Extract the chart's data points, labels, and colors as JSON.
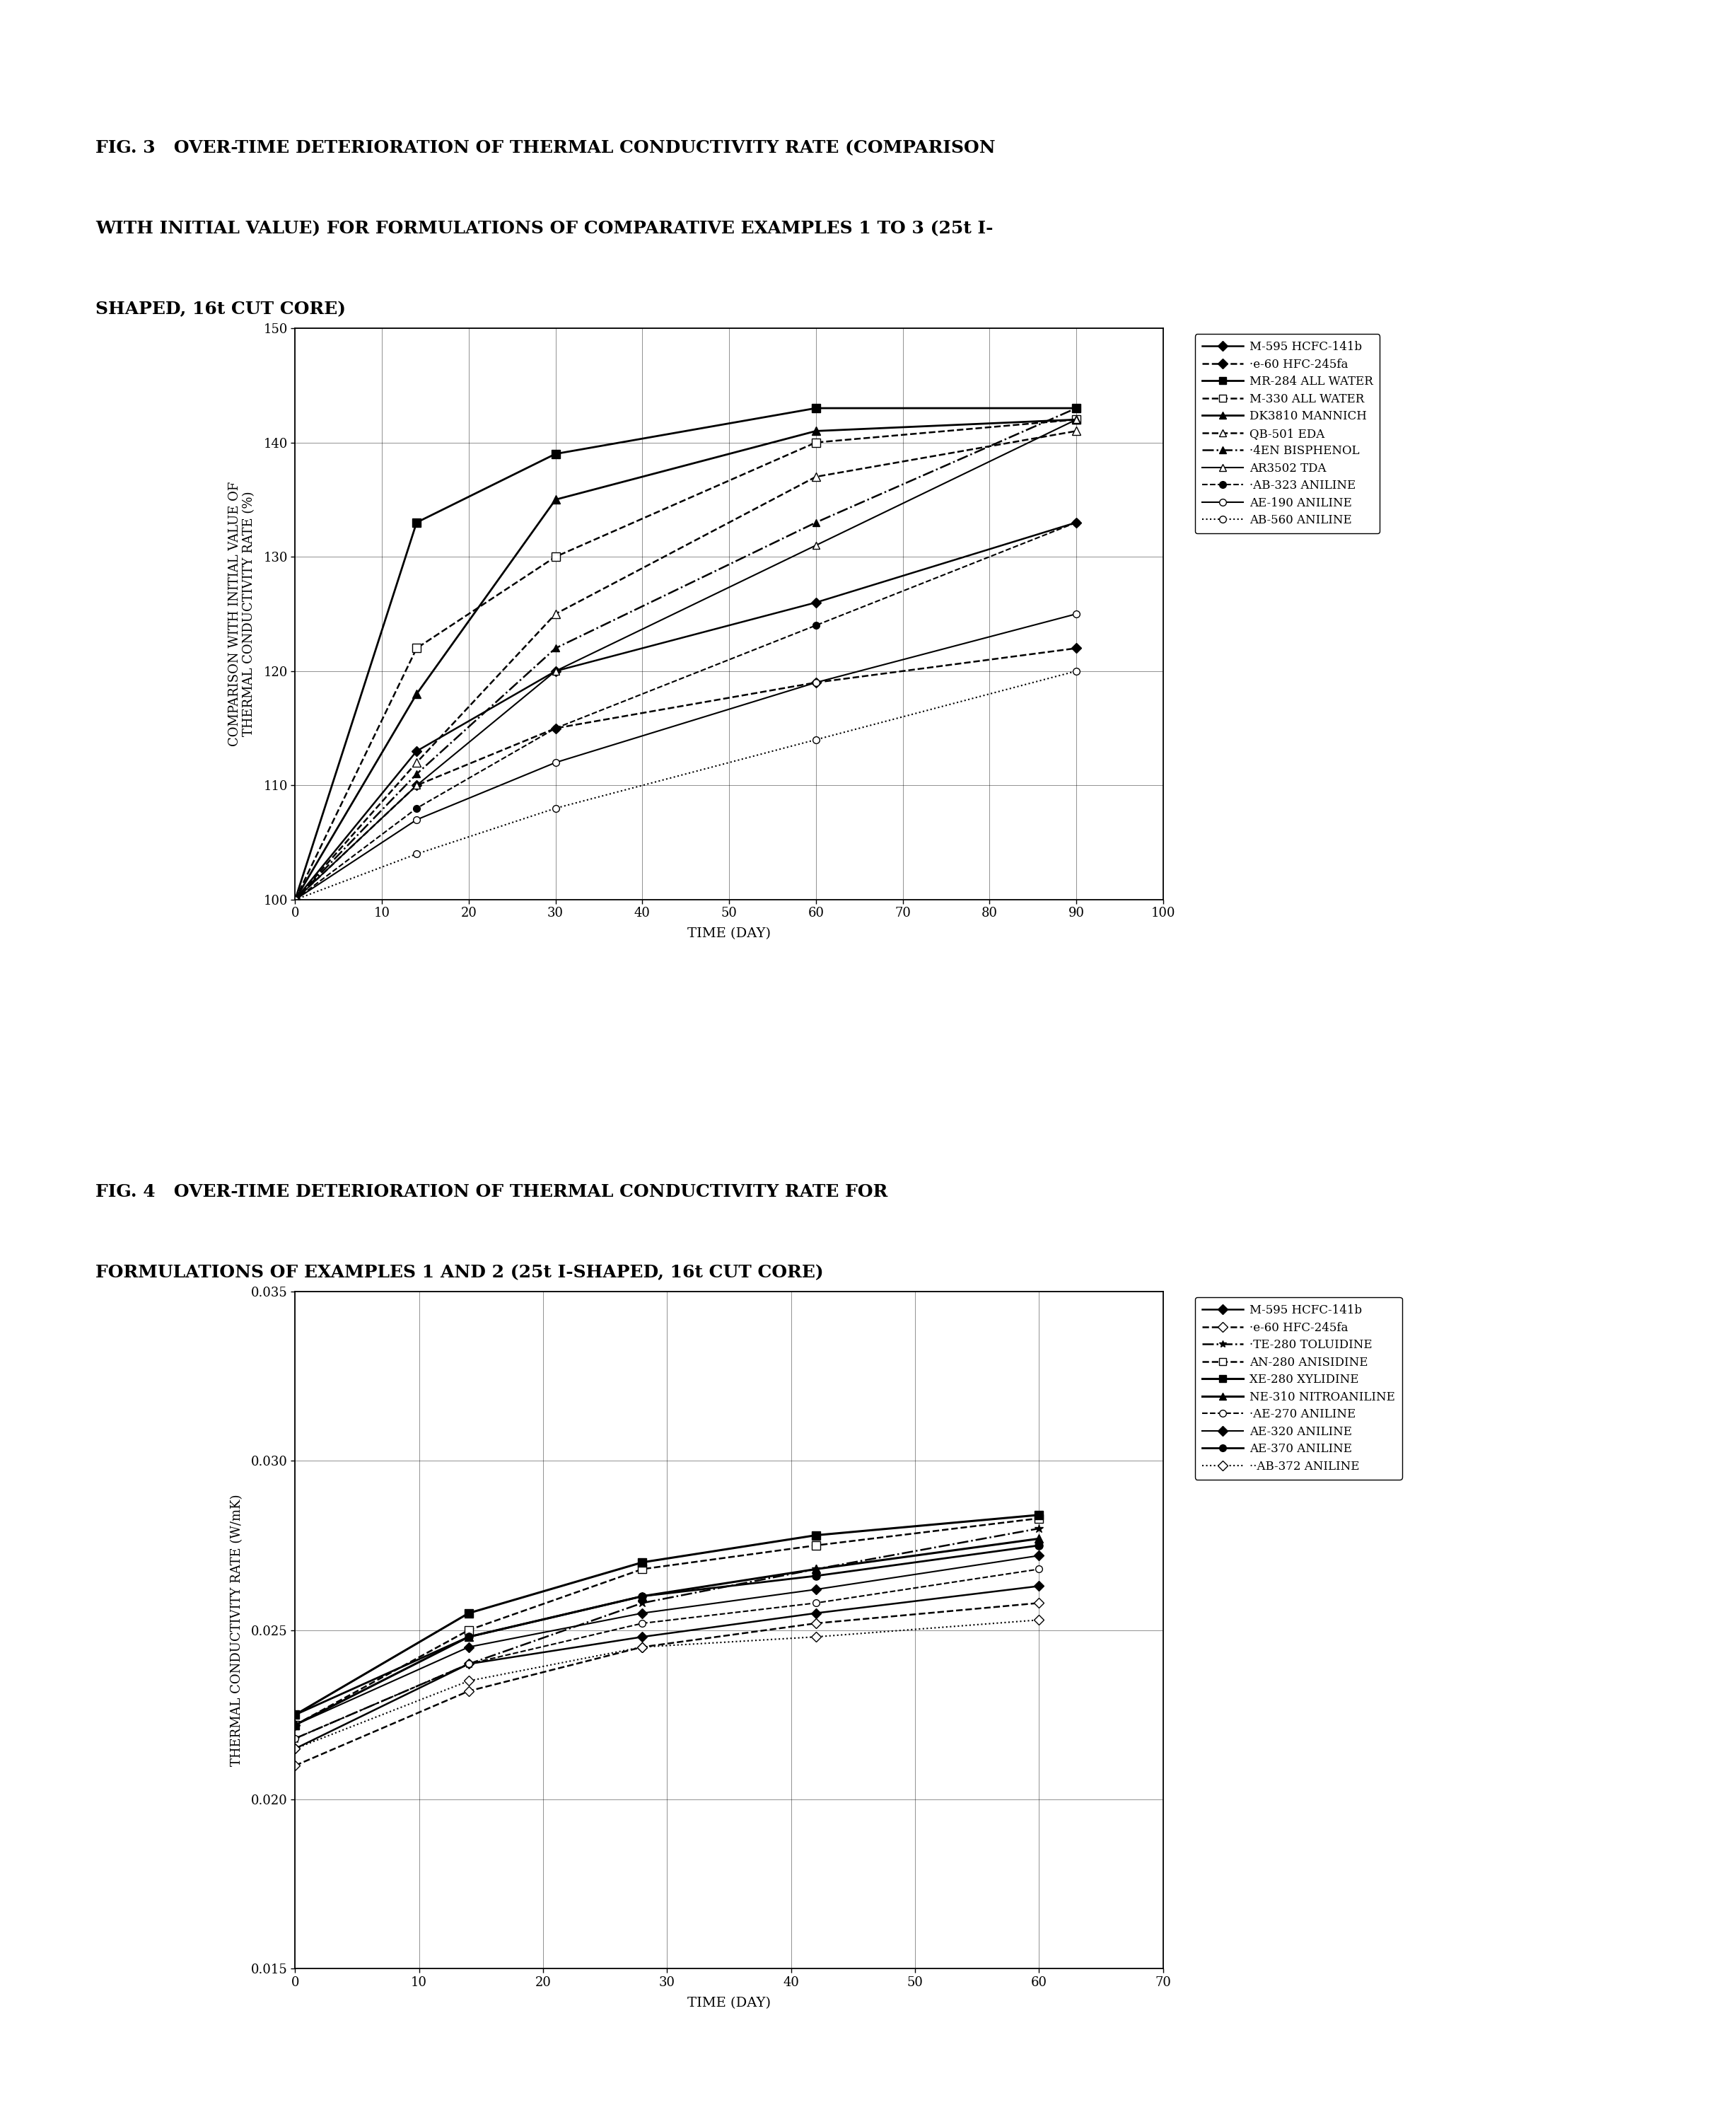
{
  "fig3_title_lines": [
    "FIG. 3   OVER-TIME DETERIORATION OF THERMAL CONDUCTIVITY RATE (COMPARISON",
    "WITH INITIAL VALUE) FOR FORMULATIONS OF COMPARATIVE EXAMPLES 1 TO 3 (25t I-",
    "SHAPED, 16t CUT CORE)"
  ],
  "fig4_title_lines": [
    "FIG. 4   OVER-TIME DETERIORATION OF THERMAL CONDUCTIVITY RATE FOR",
    "FORMULATIONS OF EXAMPLES 1 AND 2 (25t I-SHAPED, 16t CUT CORE)"
  ],
  "fig3_xlabel": "TIME (DAY)",
  "fig3_ylabel_line1": "COMPARISON WITH INITIAL VALUE OF",
  "fig3_ylabel_line2": "THERMAL CONDUCTIVITY RATE (%)",
  "fig3_xlim": [
    0,
    100
  ],
  "fig3_ylim": [
    100,
    150
  ],
  "fig3_xticks": [
    0,
    10,
    20,
    30,
    40,
    50,
    60,
    70,
    80,
    90,
    100
  ],
  "fig3_yticks": [
    100,
    110,
    120,
    130,
    140,
    150
  ],
  "fig4_xlabel": "TIME (DAY)",
  "fig4_ylabel": "THERMAL CONDUCTIVITY RATE (W/mK)",
  "fig4_xlim": [
    0,
    70
  ],
  "fig4_ylim": [
    0.015,
    0.035
  ],
  "fig4_xticks": [
    0,
    10,
    20,
    30,
    40,
    50,
    60,
    70
  ],
  "fig4_yticks": [
    0.015,
    0.02,
    0.025,
    0.03,
    0.035
  ],
  "bg_color": "#ffffff",
  "line_color": "#000000",
  "fig3_series": [
    {
      "label": "M-595 HCFC-141b",
      "x": [
        0,
        14,
        30,
        60,
        90
      ],
      "y": [
        100,
        113,
        120,
        126,
        133
      ],
      "linestyle": "-",
      "marker": "D",
      "markersize": 7,
      "linewidth": 1.8,
      "mfc": "black"
    },
    {
      "label": "·e-60 HFC-245fa",
      "x": [
        0,
        14,
        30,
        60,
        90
      ],
      "y": [
        100,
        110,
        115,
        119,
        122
      ],
      "linestyle": "--",
      "marker": "D",
      "markersize": 7,
      "linewidth": 1.8,
      "mfc": "black"
    },
    {
      "label": "MR-284 ALL WATER",
      "x": [
        0,
        14,
        30,
        60,
        90
      ],
      "y": [
        100,
        133,
        139,
        143,
        143
      ],
      "linestyle": "-",
      "marker": "s",
      "markersize": 8,
      "linewidth": 2.0,
      "mfc": "black"
    },
    {
      "label": "M-330 ALL WATER",
      "x": [
        0,
        14,
        30,
        60,
        90
      ],
      "y": [
        100,
        122,
        130,
        140,
        142
      ],
      "linestyle": "--",
      "marker": "s",
      "markersize": 8,
      "linewidth": 1.8,
      "mfc": "white"
    },
    {
      "label": "DK3810 MANNICH",
      "x": [
        0,
        14,
        30,
        60,
        90
      ],
      "y": [
        100,
        118,
        135,
        141,
        142
      ],
      "linestyle": "-",
      "marker": "^",
      "markersize": 8,
      "linewidth": 2.0,
      "mfc": "black"
    },
    {
      "label": "QB-501 EDA",
      "x": [
        0,
        14,
        30,
        60,
        90
      ],
      "y": [
        100,
        112,
        125,
        137,
        141
      ],
      "linestyle": "--",
      "marker": "^",
      "markersize": 8,
      "linewidth": 1.8,
      "mfc": "white"
    },
    {
      "label": "·4EN BISPHENOL",
      "x": [
        0,
        14,
        30,
        60,
        90
      ],
      "y": [
        100,
        111,
        122,
        133,
        143
      ],
      "linestyle": "-.",
      "marker": "^",
      "markersize": 7,
      "linewidth": 1.8,
      "mfc": "black"
    },
    {
      "label": "AR3502 TDA",
      "x": [
        0,
        14,
        30,
        60,
        90
      ],
      "y": [
        100,
        110,
        120,
        131,
        142
      ],
      "linestyle": "-",
      "marker": "^",
      "markersize": 7,
      "linewidth": 1.5,
      "mfc": "white"
    },
    {
      "label": "·AB-323 ANILINE",
      "x": [
        0,
        14,
        30,
        60,
        90
      ],
      "y": [
        100,
        108,
        115,
        124,
        133
      ],
      "linestyle": "--",
      "marker": "o",
      "markersize": 7,
      "linewidth": 1.5,
      "mfc": "black"
    },
    {
      "label": "AE-190 ANILINE",
      "x": [
        0,
        14,
        30,
        60,
        90
      ],
      "y": [
        100,
        107,
        112,
        119,
        125
      ],
      "linestyle": "-",
      "marker": "o",
      "markersize": 7,
      "linewidth": 1.5,
      "mfc": "white"
    },
    {
      "label": "AB-560 ANILINE",
      "x": [
        0,
        14,
        30,
        60,
        90
      ],
      "y": [
        100,
        104,
        108,
        114,
        120
      ],
      "linestyle": ":",
      "marker": "o",
      "markersize": 7,
      "linewidth": 1.5,
      "mfc": "white"
    }
  ],
  "fig4_series": [
    {
      "label": "M-595 HCFC-141b",
      "x": [
        0,
        14,
        28,
        42,
        60
      ],
      "y": [
        0.0215,
        0.024,
        0.0248,
        0.0255,
        0.0263
      ],
      "linestyle": "-",
      "marker": "D",
      "markersize": 7,
      "linewidth": 1.8,
      "mfc": "black"
    },
    {
      "label": "·e-60 HFC-245fa",
      "x": [
        0,
        14,
        28,
        42,
        60
      ],
      "y": [
        0.021,
        0.0232,
        0.0245,
        0.0252,
        0.0258
      ],
      "linestyle": "--",
      "marker": "D",
      "markersize": 7,
      "linewidth": 1.8,
      "mfc": "white"
    },
    {
      "label": "·TE-280 TOLUIDINE",
      "x": [
        0,
        14,
        28,
        42,
        60
      ],
      "y": [
        0.0218,
        0.024,
        0.0258,
        0.0268,
        0.028
      ],
      "linestyle": "-.",
      "marker": "*",
      "markersize": 9,
      "linewidth": 1.8,
      "mfc": "black"
    },
    {
      "label": "AN-280 ANISIDINE",
      "x": [
        0,
        14,
        28,
        42,
        60
      ],
      "y": [
        0.0222,
        0.025,
        0.0268,
        0.0275,
        0.0283
      ],
      "linestyle": "--",
      "marker": "s",
      "markersize": 8,
      "linewidth": 1.8,
      "mfc": "white"
    },
    {
      "label": "XE-280 XYLIDINE",
      "x": [
        0,
        14,
        28,
        42,
        60
      ],
      "y": [
        0.0225,
        0.0255,
        0.027,
        0.0278,
        0.0284
      ],
      "linestyle": "-",
      "marker": "s",
      "markersize": 8,
      "linewidth": 2.2,
      "mfc": "black"
    },
    {
      "label": "NE-310 NITROANILINE",
      "x": [
        0,
        14,
        28,
        42,
        60
      ],
      "y": [
        0.0222,
        0.0248,
        0.026,
        0.0268,
        0.0277
      ],
      "linestyle": "-",
      "marker": "^",
      "markersize": 8,
      "linewidth": 2.2,
      "mfc": "black"
    },
    {
      "label": "·AE-270 ANILINE",
      "x": [
        0,
        14,
        28,
        42,
        60
      ],
      "y": [
        0.0218,
        0.024,
        0.0252,
        0.0258,
        0.0268
      ],
      "linestyle": "--",
      "marker": "o",
      "markersize": 7,
      "linewidth": 1.5,
      "mfc": "white"
    },
    {
      "label": "AE-320 ANILINE",
      "x": [
        0,
        14,
        28,
        42,
        60
      ],
      "y": [
        0.0222,
        0.0245,
        0.0255,
        0.0262,
        0.0272
      ],
      "linestyle": "-",
      "marker": "D",
      "markersize": 7,
      "linewidth": 1.5,
      "mfc": "black"
    },
    {
      "label": "AE-370 ANILINE",
      "x": [
        0,
        14,
        28,
        42,
        60
      ],
      "y": [
        0.0225,
        0.0248,
        0.026,
        0.0266,
        0.0275
      ],
      "linestyle": "-",
      "marker": "o",
      "markersize": 8,
      "linewidth": 2.0,
      "mfc": "black"
    },
    {
      "label": "··AB-372 ANILINE",
      "x": [
        0,
        14,
        28,
        42,
        60
      ],
      "y": [
        0.0215,
        0.0235,
        0.0245,
        0.0248,
        0.0253
      ],
      "linestyle": ":",
      "marker": "D",
      "markersize": 7,
      "linewidth": 1.5,
      "mfc": "white"
    }
  ]
}
